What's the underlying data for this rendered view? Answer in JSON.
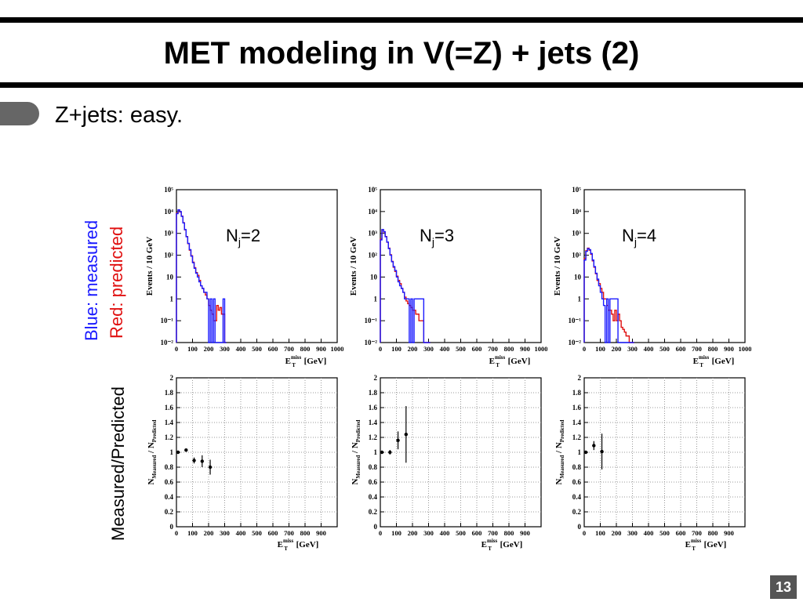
{
  "slide": {
    "title": "MET modeling in V(=Z) + jets (2)",
    "bullet": "Z+jets: easy.",
    "page_number": "13",
    "legend_measured": "Blue: measured",
    "legend_predicted": "Red: predicted",
    "ratio_label": "Measured/Predicted",
    "colors": {
      "measured": "#1a1aff",
      "predicted": "#e01010",
      "ratio": "#000000"
    }
  },
  "axes_text": {
    "top_ylabel": "Events / 10 GeV",
    "bottom_ylabel_main": "N",
    "bottom_ylabel_sub1": "Measured",
    "bottom_ylabel_mid": " / N",
    "bottom_ylabel_sub2": "Predicted",
    "xlabel_main": "E",
    "xlabel_sub": "T",
    "xlabel_sup": "miss",
    "xlabel_unit": " [GeV]",
    "top_x_ticks": [
      "0",
      "100",
      "200",
      "300",
      "400",
      "500",
      "600",
      "700",
      "800",
      "900",
      "1000"
    ],
    "bottom_x_ticks": [
      "0",
      "100",
      "200",
      "300",
      "400",
      "500",
      "600",
      "700",
      "800",
      "900"
    ],
    "top_y_ticks": [
      "10⁻²",
      "10⁻¹",
      "1",
      "10",
      "10²",
      "10³",
      "10⁴",
      "10⁵"
    ],
    "bottom_y_ticks": [
      "0",
      "0.2",
      "0.4",
      "0.6",
      "0.8",
      "1",
      "1.2",
      "1.4",
      "1.6",
      "1.8",
      "2"
    ]
  },
  "chart_data": [
    {
      "type": "line",
      "jet_label": "N",
      "jet_sub": "j",
      "jet_value": "=2",
      "xlim": [
        0,
        1000
      ],
      "ylim_log10": [
        -2,
        5
      ],
      "yscale": "log",
      "series": [
        {
          "name": "measured",
          "x": [
            0,
            10,
            20,
            30,
            40,
            50,
            60,
            70,
            80,
            90,
            100,
            110,
            120,
            130,
            140,
            150,
            160,
            170,
            180,
            190,
            200,
            210,
            220,
            230,
            240,
            250,
            260,
            270,
            280,
            290,
            300
          ],
          "values": [
            8000,
            12000,
            10000,
            6000,
            3000,
            1500,
            700,
            350,
            180,
            90,
            45,
            25,
            15,
            10,
            6,
            4,
            3,
            2,
            2,
            1,
            0.01,
            1,
            0.01,
            1,
            0.01,
            0.01,
            0.01,
            0.01,
            0.01,
            1,
            0.01
          ]
        },
        {
          "name": "predicted",
          "x": [
            0,
            10,
            20,
            30,
            40,
            50,
            60,
            70,
            80,
            90,
            100,
            110,
            120,
            130,
            140,
            150,
            160,
            170,
            180,
            190,
            200,
            210,
            220,
            230,
            240,
            250,
            260,
            270,
            280,
            290,
            300
          ],
          "values": [
            8500,
            11500,
            9500,
            6200,
            3100,
            1450,
            720,
            340,
            170,
            95,
            48,
            27,
            16,
            12,
            7,
            4,
            3,
            2,
            1.5,
            1,
            0.5,
            0.3,
            0.2,
            0.1,
            0.1,
            0.5,
            0.3,
            0.4,
            0.2,
            0.2,
            0.01
          ]
        }
      ]
    },
    {
      "type": "line",
      "jet_label": "N",
      "jet_sub": "j",
      "jet_value": "=3",
      "xlim": [
        0,
        1000
      ],
      "ylim_log10": [
        -2,
        5
      ],
      "yscale": "log",
      "series": [
        {
          "name": "measured",
          "x": [
            0,
            10,
            20,
            30,
            40,
            50,
            60,
            70,
            80,
            90,
            100,
            110,
            120,
            130,
            140,
            150,
            160,
            170,
            180,
            190,
            200,
            210,
            220,
            230,
            240,
            250,
            260,
            270,
            280,
            290,
            300
          ],
          "values": [
            500,
            1500,
            1200,
            700,
            400,
            200,
            100,
            50,
            30,
            20,
            10,
            6,
            4,
            3,
            2,
            1,
            1,
            1,
            0.01,
            1,
            0.01,
            1,
            1,
            1,
            1,
            1,
            1,
            0.01,
            0.01,
            0.01,
            0.01
          ]
        },
        {
          "name": "predicted",
          "x": [
            0,
            10,
            20,
            30,
            40,
            50,
            60,
            70,
            80,
            90,
            100,
            110,
            120,
            130,
            140,
            150,
            160,
            170,
            180,
            190,
            200,
            210,
            220,
            230,
            240,
            250,
            260,
            270,
            280,
            290,
            300
          ],
          "values": [
            550,
            1450,
            1150,
            720,
            390,
            210,
            105,
            52,
            28,
            18,
            11,
            7,
            5,
            3,
            2,
            1.2,
            0.8,
            0.6,
            0.5,
            0.4,
            0.3,
            0.3,
            0.2,
            0.2,
            0.1,
            0.1,
            0.1,
            0.01,
            0.01,
            0.01,
            0.01
          ]
        }
      ]
    },
    {
      "type": "line",
      "jet_label": "N",
      "jet_sub": "j",
      "jet_value": "=4",
      "xlim": [
        0,
        1000
      ],
      "ylim_log10": [
        -2,
        5
      ],
      "yscale": "log",
      "series": [
        {
          "name": "measured",
          "x": [
            0,
            10,
            20,
            30,
            40,
            50,
            60,
            70,
            80,
            90,
            100,
            110,
            120,
            130,
            140,
            150,
            160,
            170,
            180,
            190,
            200,
            210,
            220,
            230,
            240,
            250,
            260,
            270,
            280,
            290,
            300
          ],
          "values": [
            60,
            150,
            200,
            180,
            120,
            60,
            30,
            15,
            8,
            4,
            2,
            1,
            0.5,
            0.01,
            1,
            0.01,
            1,
            1,
            1,
            1,
            1,
            0.01,
            0.01,
            0.01,
            0.01,
            0.01,
            0.01,
            0.01,
            0.01,
            0.01,
            0.01
          ]
        },
        {
          "name": "predicted",
          "x": [
            0,
            10,
            20,
            30,
            40,
            50,
            60,
            70,
            80,
            90,
            100,
            110,
            120,
            130,
            140,
            150,
            160,
            170,
            180,
            190,
            200,
            210,
            220,
            230,
            240,
            250,
            260,
            270,
            280,
            290,
            300
          ],
          "values": [
            70,
            160,
            210,
            170,
            110,
            55,
            28,
            14,
            7,
            5,
            3,
            2,
            1,
            1,
            0.5,
            0.3,
            0.3,
            0.2,
            0.1,
            0.3,
            0.1,
            0.2,
            0.1,
            0.05,
            0.04,
            0.03,
            0.02,
            0.02,
            0.01,
            0.01,
            0.01
          ]
        }
      ]
    },
    {
      "type": "scatter",
      "xlim": [
        0,
        1000
      ],
      "ylim": [
        0,
        2
      ],
      "series": [
        {
          "name": "ratio",
          "x": [
            10,
            60,
            110,
            160,
            210
          ],
          "values": [
            1.0,
            1.03,
            0.89,
            0.88,
            0.8
          ],
          "errors": [
            0.01,
            0.02,
            0.04,
            0.08,
            0.1
          ]
        }
      ]
    },
    {
      "type": "scatter",
      "xlim": [
        0,
        1000
      ],
      "ylim": [
        0,
        2
      ],
      "series": [
        {
          "name": "ratio",
          "x": [
            10,
            60,
            110,
            160
          ],
          "values": [
            1.0,
            1.0,
            1.16,
            1.24
          ],
          "errors": [
            0.01,
            0.03,
            0.12,
            0.38
          ]
        }
      ]
    },
    {
      "type": "scatter",
      "xlim": [
        0,
        1000
      ],
      "ylim": [
        0,
        2
      ],
      "series": [
        {
          "name": "ratio",
          "x": [
            10,
            60,
            110
          ],
          "values": [
            1.0,
            1.09,
            1.01
          ],
          "errors": [
            0.02,
            0.06,
            0.24
          ]
        }
      ]
    }
  ]
}
